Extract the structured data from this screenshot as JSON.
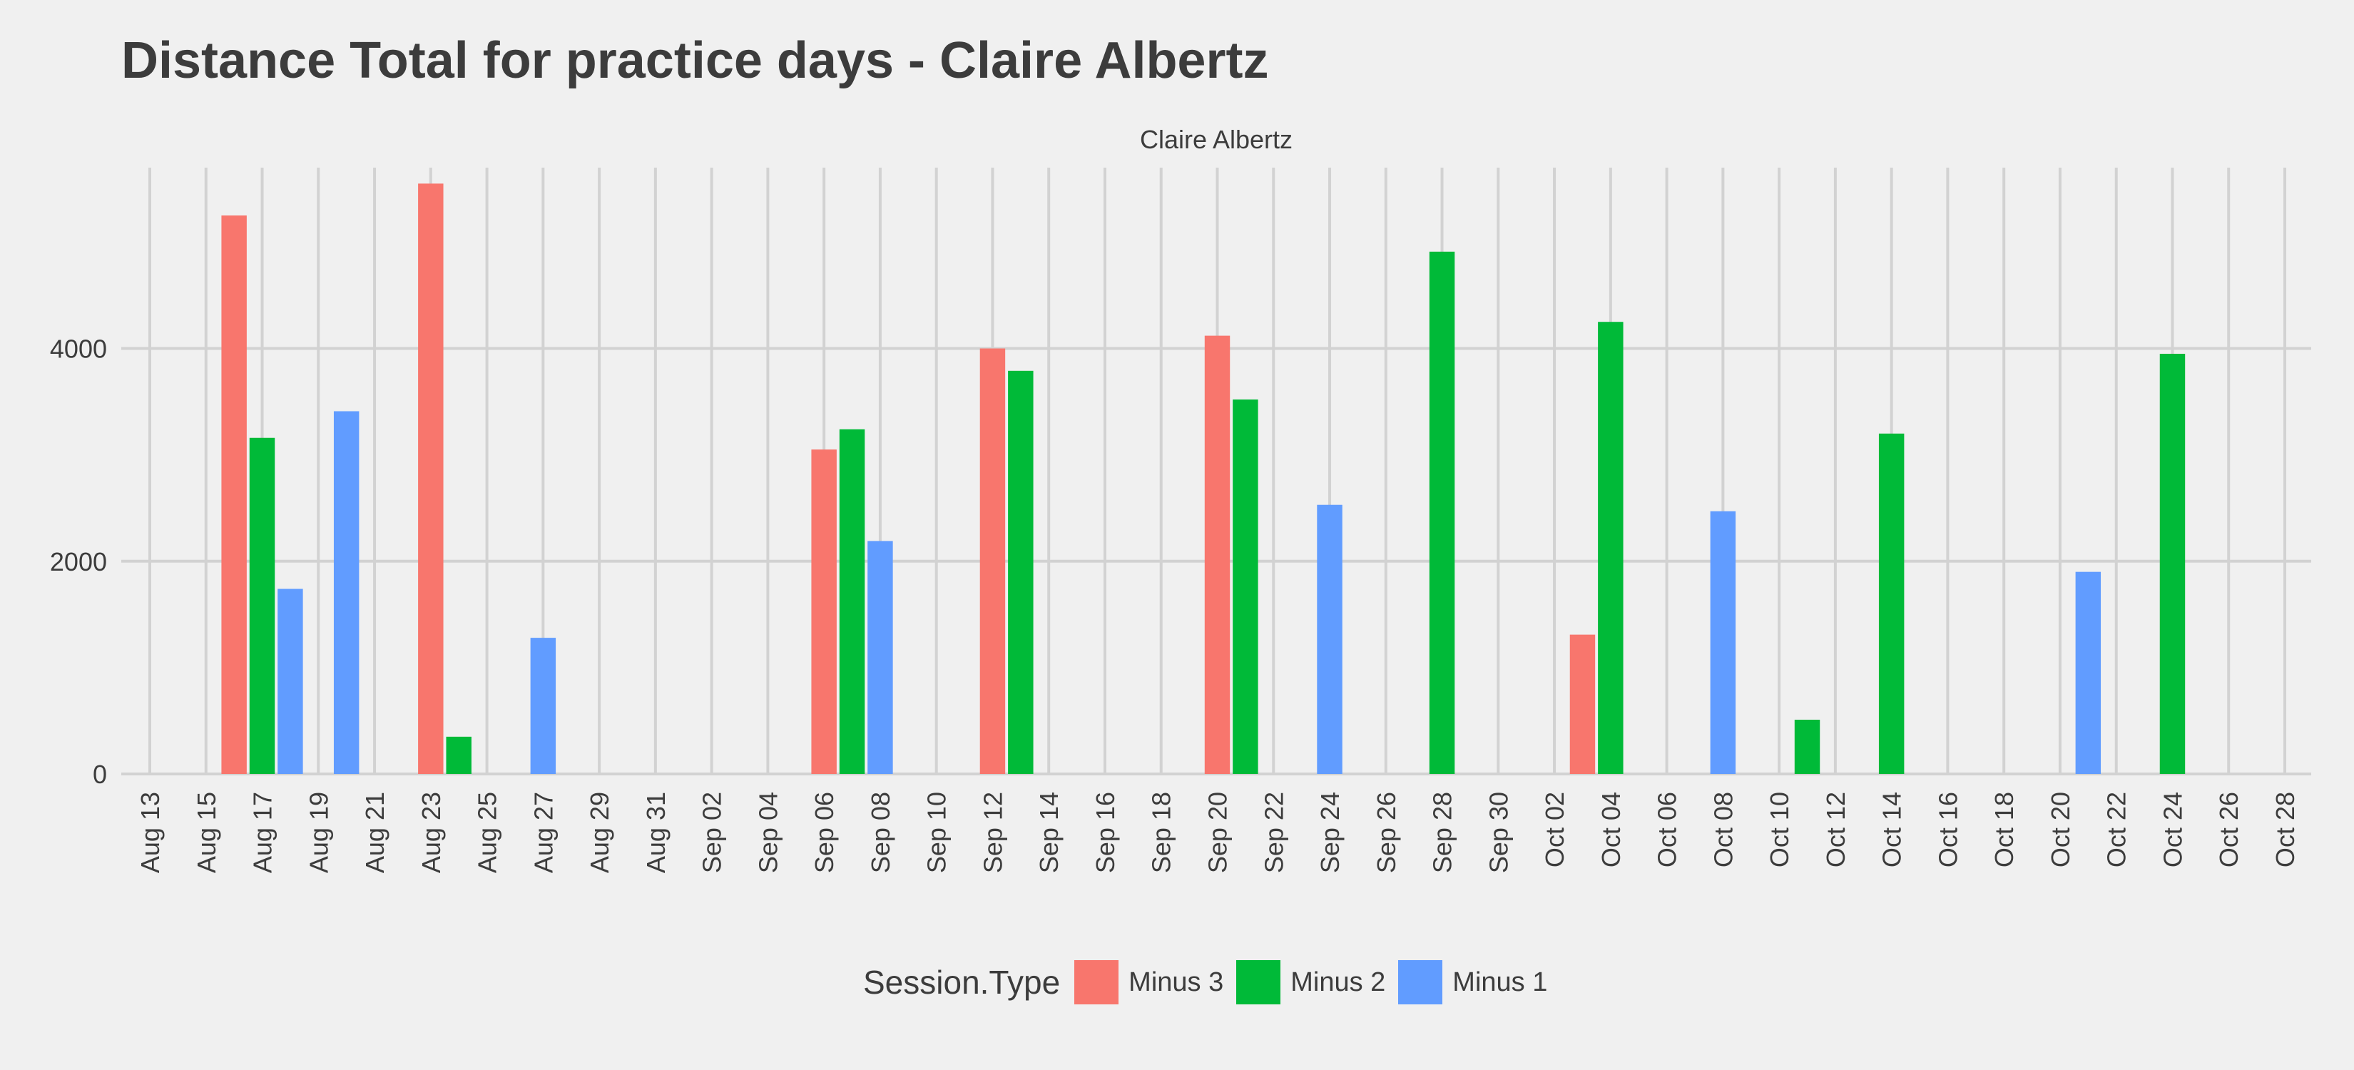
{
  "chart_data": {
    "type": "bar",
    "title": "Distance Total for practice days -  Claire Albertz",
    "facet_label": "Claire Albertz",
    "xlabel": "",
    "ylabel": "",
    "ylim": [
      0,
      5700
    ],
    "yticks": [
      0,
      2000,
      4000
    ],
    "x_date_range": [
      "2023-08-13",
      "2023-10-28"
    ],
    "x_tick_labels": [
      "Aug 13",
      "Aug 15",
      "Aug 17",
      "Aug 19",
      "Aug 21",
      "Aug 23",
      "Aug 25",
      "Aug 27",
      "Aug 29",
      "Aug 31",
      "Sep 02",
      "Sep 04",
      "Sep 06",
      "Sep 08",
      "Sep 10",
      "Sep 12",
      "Sep 14",
      "Sep 16",
      "Sep 18",
      "Sep 20",
      "Sep 22",
      "Sep 24",
      "Sep 26",
      "Sep 28",
      "Sep 30",
      "Oct 02",
      "Oct 04",
      "Oct 06",
      "Oct 08",
      "Oct 10",
      "Oct 12",
      "Oct 14",
      "Oct 16",
      "Oct 18",
      "Oct 20",
      "Oct 22",
      "Oct 24",
      "Oct 26",
      "Oct 28"
    ],
    "grid": true,
    "legend": {
      "title": "Session.Type",
      "placement": "bottom",
      "entries": [
        "Minus 3",
        "Minus 2",
        "Minus 1"
      ]
    },
    "series": [
      {
        "name": "Minus 3",
        "color": "#F8766D",
        "points": [
          {
            "date": "2023-08-16",
            "value": 5250
          },
          {
            "date": "2023-08-23",
            "value": 5550
          },
          {
            "date": "2023-09-06",
            "value": 3050
          },
          {
            "date": "2023-09-12",
            "value": 4000
          },
          {
            "date": "2023-09-20",
            "value": 4120
          },
          {
            "date": "2023-10-03",
            "value": 1310
          }
        ]
      },
      {
        "name": "Minus 2",
        "color": "#00BA38",
        "points": [
          {
            "date": "2023-08-17",
            "value": 3160
          },
          {
            "date": "2023-08-24",
            "value": 350
          },
          {
            "date": "2023-09-07",
            "value": 3240
          },
          {
            "date": "2023-09-13",
            "value": 3790
          },
          {
            "date": "2023-09-21",
            "value": 3520
          },
          {
            "date": "2023-09-28",
            "value": 4910
          },
          {
            "date": "2023-10-04",
            "value": 4250
          },
          {
            "date": "2023-10-11",
            "value": 510
          },
          {
            "date": "2023-10-14",
            "value": 3200
          },
          {
            "date": "2023-10-24",
            "value": 3950
          }
        ]
      },
      {
        "name": "Minus 1",
        "color": "#619CFF",
        "points": [
          {
            "date": "2023-08-18",
            "value": 1740
          },
          {
            "date": "2023-08-20",
            "value": 3410
          },
          {
            "date": "2023-08-27",
            "value": 1280
          },
          {
            "date": "2023-09-08",
            "value": 2190
          },
          {
            "date": "2023-09-24",
            "value": 2530
          },
          {
            "date": "2023-10-08",
            "value": 2470
          },
          {
            "date": "2023-10-21",
            "value": 1900
          }
        ]
      }
    ]
  }
}
